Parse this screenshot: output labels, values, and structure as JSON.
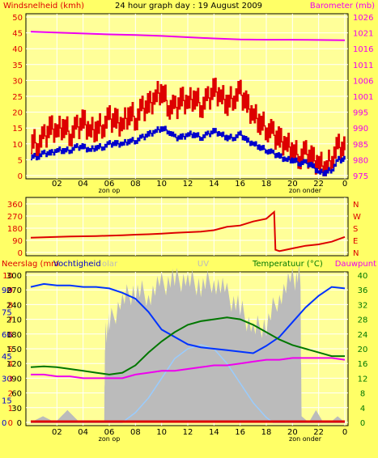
{
  "page": {
    "title": "24 hour graph day : 19 August 2009",
    "under_labels": {
      "sunrise": "zon op",
      "sunset": "zon onder"
    }
  },
  "colors": {
    "background": "#ffff66",
    "plot_bg": "#ffff99",
    "wind": "#dd0000",
    "wind_avg": "#0000cc",
    "baro": "#ee00ee",
    "dir": "#dd0000",
    "hum": "#0033ff",
    "temp": "#007700",
    "dew": "#ee00ee",
    "solar": "#bbbbbb",
    "uv": "#99ccff",
    "rain": "#dd0000"
  },
  "chart_data": [
    {
      "type": "line",
      "title": "24 hour graph day : 19 August 2009",
      "left_axis_label": "Windsnelheid (kmh)",
      "right_axis_label": "Barometer (mb)",
      "x_ticks": [
        "02",
        "04",
        "06",
        "08",
        "10",
        "12",
        "14",
        "16",
        "18",
        "20",
        "22",
        "0"
      ],
      "y_left_ticks": [
        "0",
        "5",
        "10",
        "15",
        "20",
        "25",
        "30",
        "35",
        "40",
        "45",
        "50"
      ],
      "y_right_ticks": [
        "975",
        "980",
        "985",
        "990",
        "995",
        "1001",
        "1006",
        "1011",
        "1016",
        "1021",
        "1026"
      ],
      "ylim_left": [
        0,
        50
      ],
      "ylim_right": [
        975,
        1026
      ],
      "series": [
        {
          "name": "Windsnelheid (kmh)",
          "hours": [
            0,
            0.5,
            1,
            1.5,
            2,
            2.5,
            3,
            3.5,
            4,
            4.5,
            5,
            5.5,
            6,
            6.5,
            7,
            7.5,
            8,
            8.5,
            9,
            9.5,
            10,
            10.5,
            11,
            11.5,
            12,
            12.5,
            13,
            13.5,
            14,
            14.5,
            15,
            15.5,
            16,
            16.5,
            17,
            17.5,
            18,
            18.5,
            19,
            19.5,
            20,
            20.5,
            21,
            21.5,
            22,
            22.5,
            23,
            23.5,
            24
          ],
          "values": [
            11,
            10,
            12,
            15,
            14,
            16,
            13,
            15,
            17,
            14,
            15,
            16,
            18,
            17,
            16,
            20,
            18,
            21,
            22,
            25,
            27,
            22,
            21,
            24,
            23,
            25,
            22,
            24,
            27,
            25,
            23,
            25,
            26,
            22,
            19,
            17,
            15,
            13,
            11,
            10,
            8,
            6,
            7,
            5,
            4,
            2,
            6,
            9,
            8
          ]
        },
        {
          "name": "Windsnelheid gemiddeld",
          "hours": [
            0,
            0.5,
            1,
            1.5,
            2,
            2.5,
            3,
            3.5,
            4,
            4.5,
            5,
            5.5,
            6,
            6.5,
            7,
            7.5,
            8,
            8.5,
            9,
            9.5,
            10,
            10.5,
            11,
            11.5,
            12,
            12.5,
            13,
            13.5,
            14,
            14.5,
            15,
            15.5,
            16,
            16.5,
            17,
            17.5,
            18,
            18.5,
            19,
            19.5,
            20,
            20.5,
            21,
            21.5,
            22,
            22.5,
            23,
            23.5,
            24
          ],
          "values": [
            6,
            6,
            7,
            7,
            8,
            8,
            8,
            9,
            9,
            8,
            9,
            9,
            10,
            10,
            10,
            11,
            11,
            12,
            13,
            14,
            15,
            14,
            12,
            12,
            13,
            13,
            12,
            13,
            14,
            13,
            12,
            12,
            13,
            11,
            10,
            9,
            8,
            7,
            6,
            5,
            5,
            4,
            4,
            3,
            1,
            1,
            2,
            5,
            5
          ]
        },
        {
          "name": "Barometer (mb)",
          "axis": "right",
          "hours": [
            0,
            2,
            4,
            6,
            8,
            10,
            12,
            14,
            16,
            18,
            20,
            22,
            24
          ],
          "values": [
            1021.3,
            1021.0,
            1020.7,
            1020.4,
            1020.2,
            1019.9,
            1019.5,
            1019.1,
            1018.8,
            1018.7,
            1018.7,
            1018.6,
            1018.5
          ]
        }
      ]
    },
    {
      "type": "line",
      "y_ticks": [
        "0",
        "90",
        "180",
        "270",
        "360"
      ],
      "y_right_ticks": [
        "N",
        "E",
        "S",
        "W",
        "N"
      ],
      "ylim": [
        0,
        360
      ],
      "series": [
        {
          "name": "Windrichting",
          "hours": [
            0,
            1,
            2,
            3,
            4,
            5,
            6,
            7,
            8,
            9,
            10,
            11,
            12,
            13,
            14,
            15,
            16,
            17,
            18,
            18.6,
            18.7,
            19,
            20,
            21,
            22,
            23,
            24
          ],
          "values": [
            110,
            112,
            115,
            118,
            120,
            122,
            125,
            128,
            132,
            135,
            140,
            145,
            150,
            155,
            165,
            190,
            200,
            230,
            250,
            300,
            20,
            10,
            30,
            50,
            60,
            80,
            115
          ]
        }
      ]
    },
    {
      "type": "line",
      "left_axis_label": "Neerslag (mm",
      "left_axis_label2": "Vochtigheid",
      "solar_label": "olar",
      "uv_label": "UV",
      "right_axis_label": "Temperatuur (°C)",
      "right_axis_label2": "Dauwpunt",
      "y_left_ticks": [
        "0",
        "15",
        "30",
        "45",
        "60",
        "75",
        "90"
      ],
      "y_left_ticks2": [
        "0",
        "1",
        "2",
        "3",
        "4",
        "5",
        "6",
        "7",
        "8",
        "9",
        "10"
      ],
      "y_mid_ticks": [
        "0",
        "30",
        "60",
        "90",
        "120",
        "150",
        "180",
        "210",
        "240",
        "270",
        "300"
      ],
      "y_right_ticks": [
        "0",
        "4",
        "8",
        "12",
        "16",
        "20",
        "24",
        "28",
        "32",
        "36",
        "40"
      ],
      "series": [
        {
          "name": "Vochtigheid",
          "hours": [
            0,
            1,
            2,
            3,
            4,
            5,
            6,
            7,
            8,
            9,
            10,
            11,
            12,
            13,
            14,
            15,
            16,
            17,
            18,
            19,
            20,
            21,
            22,
            23,
            24
          ],
          "values": [
            92,
            94,
            93,
            93,
            92,
            92,
            91,
            88,
            84,
            75,
            63,
            58,
            53,
            51,
            50,
            49,
            48,
            47,
            52,
            58,
            68,
            78,
            86,
            92,
            91
          ]
        },
        {
          "name": "Temperatuur (°C)",
          "hours": [
            0,
            1,
            2,
            3,
            4,
            5,
            6,
            7,
            8,
            9,
            10,
            11,
            12,
            13,
            14,
            15,
            16,
            17,
            18,
            19,
            20,
            21,
            22,
            23,
            24
          ],
          "values": [
            15,
            15.2,
            15,
            14.5,
            14,
            13.5,
            13,
            13.5,
            15.5,
            19,
            22,
            24.5,
            26.5,
            27.5,
            28,
            28.5,
            28,
            26.5,
            24.5,
            22.5,
            21,
            20,
            19,
            18,
            18
          ]
        },
        {
          "name": "Dauwpunt",
          "hours": [
            0,
            1,
            2,
            3,
            4,
            5,
            6,
            7,
            8,
            9,
            10,
            11,
            12,
            13,
            14,
            15,
            16,
            17,
            18,
            19,
            20,
            21,
            22,
            23,
            24
          ],
          "values": [
            13,
            13,
            12.5,
            12.5,
            12,
            12,
            12,
            12,
            13,
            13.5,
            14,
            14,
            14.5,
            15,
            15.5,
            15.5,
            16,
            16.5,
            17,
            17,
            17.5,
            17.5,
            17.5,
            17.5,
            17
          ]
        },
        {
          "name": "Solar",
          "hours": [
            0,
            5.6,
            5.7,
            6,
            7,
            8,
            9,
            10,
            11,
            12,
            13,
            14,
            15,
            16,
            17,
            18,
            19,
            20,
            20.6,
            20.7,
            24
          ],
          "values": [
            0,
            0,
            180,
            200,
            250,
            270,
            260,
            280,
            290,
            290,
            280,
            290,
            260,
            230,
            190,
            200,
            260,
            290,
            300,
            0,
            0
          ]
        },
        {
          "name": "UV",
          "hours": [
            0,
            7,
            8,
            9,
            10,
            11,
            12,
            13,
            14,
            15,
            16,
            17,
            18,
            18.5,
            24
          ],
          "values": [
            0,
            0,
            20,
            50,
            90,
            130,
            150,
            158,
            150,
            120,
            80,
            40,
            10,
            0,
            0
          ]
        },
        {
          "name": "Neerslag (mm",
          "hours": [
            0,
            24
          ],
          "values": [
            0,
            0
          ]
        }
      ]
    }
  ]
}
